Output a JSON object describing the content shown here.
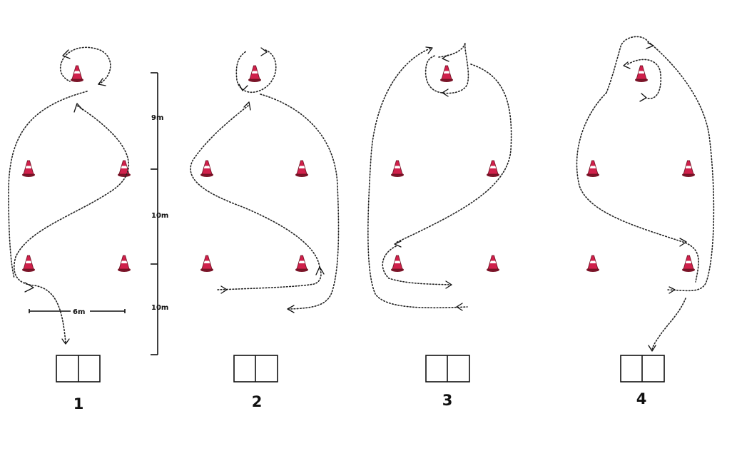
{
  "measurements": {
    "vertical_top": "9m",
    "vertical_middle": "10m",
    "vertical_bottom": "10m",
    "horizontal": "6m"
  },
  "drills": [
    {
      "label": "1"
    },
    {
      "label": "2"
    },
    {
      "label": "3"
    },
    {
      "label": "4"
    }
  ],
  "colors": {
    "cone_fill": "#d0204b",
    "cone_stripe": "#ffffff",
    "line": "#222222"
  }
}
